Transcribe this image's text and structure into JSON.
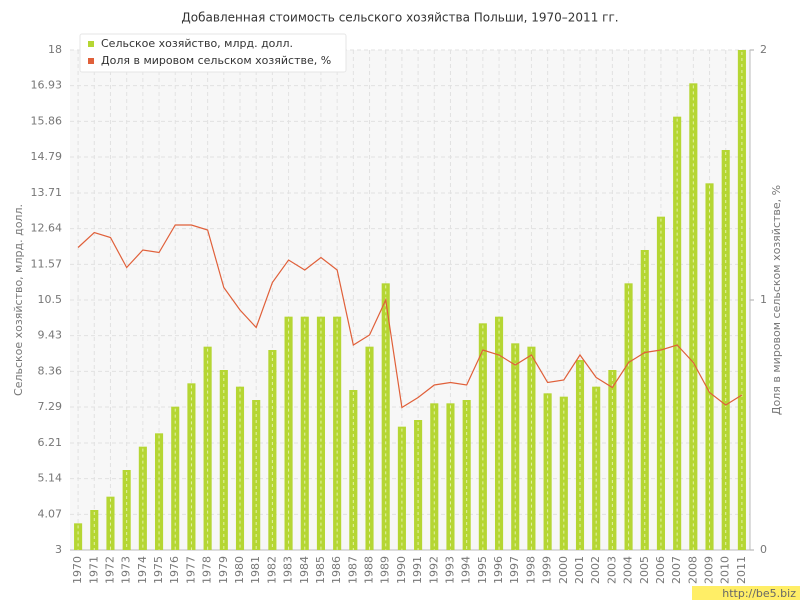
{
  "chart_data": {
    "type": "bar_line",
    "title": "Добавленная стоимость сельского хозяйства Польши, 1970–2011 гг.",
    "y_label": "Сельское хозяйство, млрд. долл.",
    "y2_label": "Доля в мировом сельском хозяйстве, %",
    "watermark": "http://be5.biz",
    "categories": [
      "1970",
      "1971",
      "1972",
      "1973",
      "1974",
      "1975",
      "1976",
      "1977",
      "1978",
      "1979",
      "1980",
      "1981",
      "1982",
      "1983",
      "1984",
      "1985",
      "1986",
      "1987",
      "1988",
      "1989",
      "1990",
      "1991",
      "1992",
      "1993",
      "1994",
      "1995",
      "1996",
      "1997",
      "1998",
      "1999",
      "2000",
      "2001",
      "2002",
      "2003",
      "2004",
      "2005",
      "2006",
      "2007",
      "2008",
      "2009",
      "2010",
      "2011"
    ],
    "series": [
      {
        "name": "Сельское хозяйство, млрд. долл.",
        "color": "#b5d633",
        "type": "bar",
        "values": [
          3.8,
          4.2,
          4.6,
          5.4,
          6.1,
          6.5,
          7.3,
          8.0,
          9.1,
          8.4,
          7.9,
          7.5,
          9.0,
          10.0,
          10.0,
          10.0,
          10.0,
          7.8,
          9.1,
          11.0,
          6.7,
          6.9,
          7.4,
          7.4,
          7.5,
          9.8,
          10.0,
          9.2,
          9.1,
          7.7,
          7.6,
          8.7,
          7.9,
          8.4,
          11.0,
          12.0,
          13.0,
          16.0,
          17.0,
          14.0,
          15.0,
          18.0
        ]
      },
      {
        "name": "Доля в мировом сельском хозяйстве, %",
        "color": "#e0603a",
        "type": "line",
        "axis": "y2",
        "values": [
          1.21,
          1.27,
          1.25,
          1.13,
          1.2,
          1.19,
          1.3,
          1.3,
          1.28,
          1.05,
          0.96,
          0.89,
          1.07,
          1.16,
          1.12,
          1.17,
          1.12,
          0.82,
          0.86,
          1.0,
          0.57,
          0.61,
          0.66,
          0.67,
          0.66,
          0.8,
          0.78,
          0.74,
          0.78,
          0.67,
          0.68,
          0.78,
          0.69,
          0.65,
          0.75,
          0.79,
          0.8,
          0.82,
          0.75,
          0.63,
          0.58,
          0.62
        ]
      }
    ],
    "ylim": [
      3,
      18
    ],
    "yticks": [
      3,
      4.07,
      5.14,
      6.21,
      7.29,
      8.36,
      9.43,
      10.5,
      11.57,
      12.64,
      13.71,
      14.79,
      15.86,
      16.93,
      18
    ],
    "y2lim": [
      0,
      2
    ],
    "y2ticks": [
      0,
      1,
      2
    ],
    "grid": true,
    "legend": "top-left"
  }
}
